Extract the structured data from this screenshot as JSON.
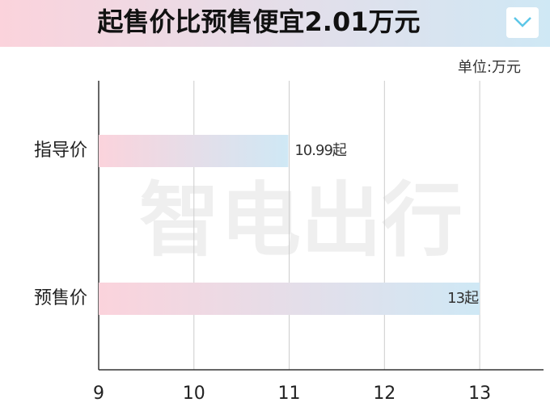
{
  "chart_data": {
    "type": "hbar",
    "title": "起售价比预售便宜2.01万元",
    "unit_label": "单位:万元",
    "watermark": "智电出行",
    "categories": [
      "指导价",
      "预售价"
    ],
    "values": [
      10.99,
      13
    ],
    "value_labels": [
      "10.99起",
      "13起"
    ],
    "xlim": [
      9,
      13.67
    ],
    "xticks": [
      9,
      10,
      11,
      12,
      13
    ],
    "grid": true,
    "color_start": "#fbd3dc",
    "color_end": "#cfe8f5"
  }
}
